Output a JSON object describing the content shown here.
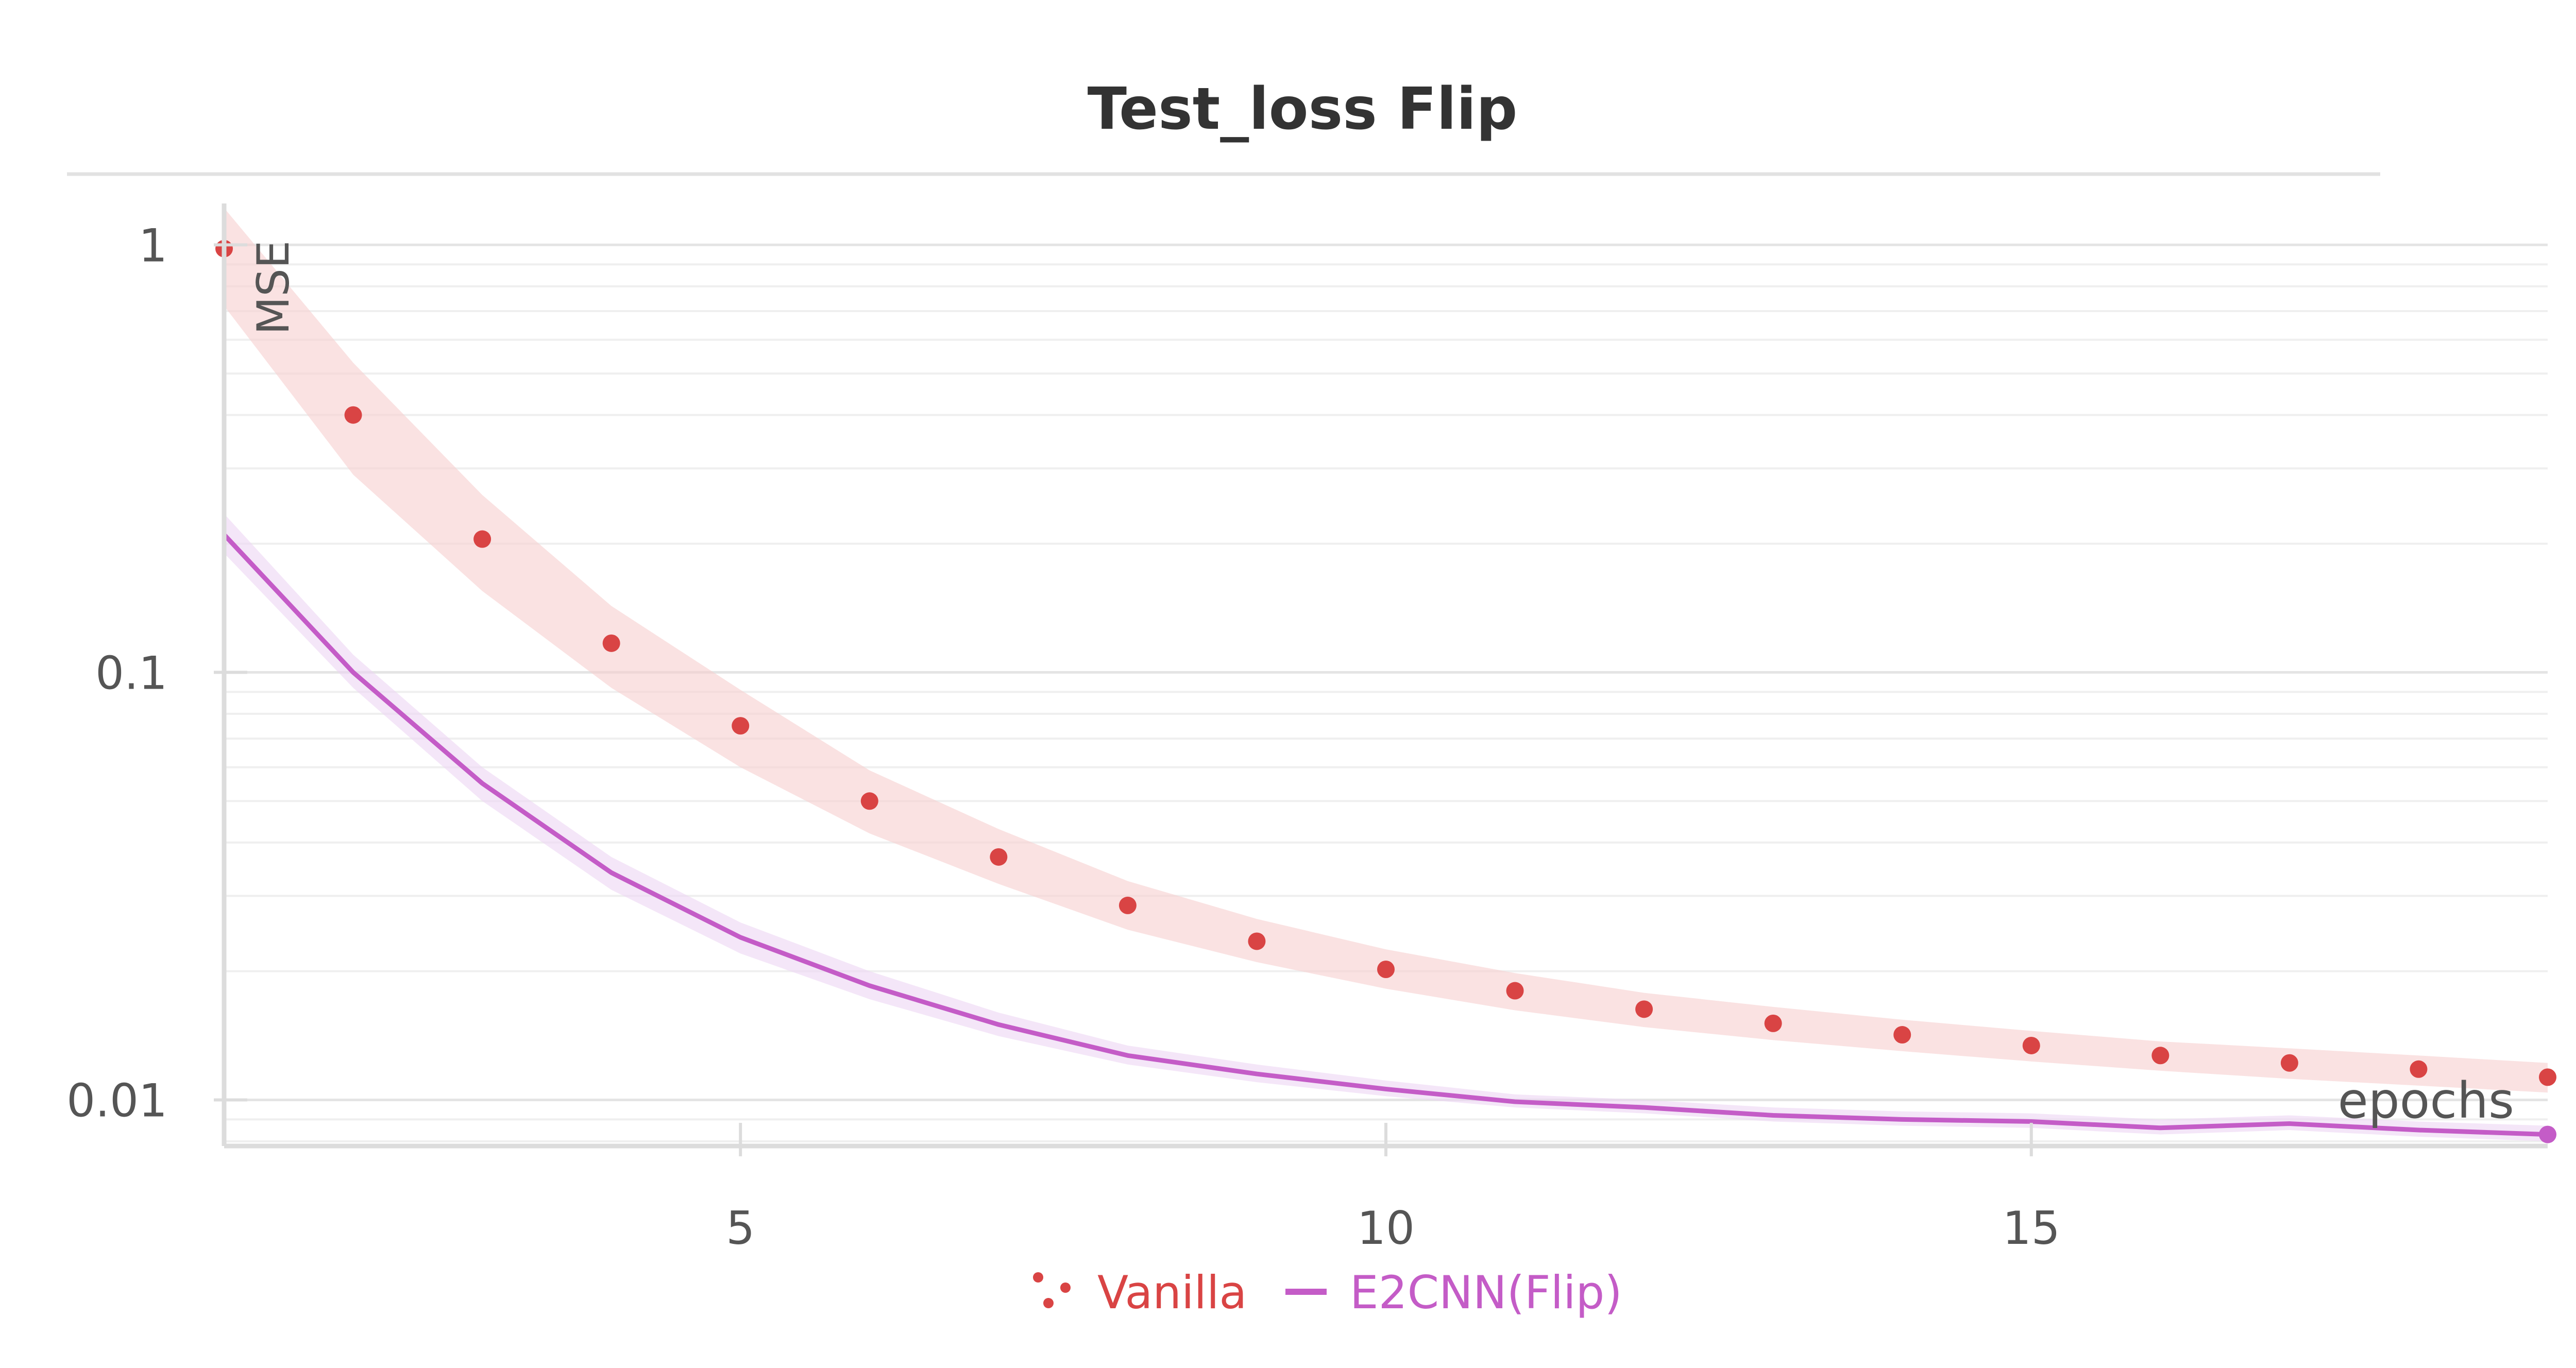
{
  "chart_data": {
    "type": "line",
    "title": "Test_loss Flip",
    "xlabel": "epochs",
    "ylabel": "MSE",
    "yscale": "log",
    "xlim": [
      1,
      19
    ],
    "ylim": [
      0.0078,
      1.25
    ],
    "x_ticks": [
      5,
      10,
      15
    ],
    "y_ticks": [
      {
        "value": 1,
        "label": "1"
      },
      {
        "value": 0.1,
        "label": "0.1"
      },
      {
        "value": 0.01,
        "label": "0.01"
      }
    ],
    "grid": true,
    "legend_position": "bottom",
    "series": [
      {
        "name": "Vanilla",
        "style": "dots",
        "color": "#d94444",
        "band_color": "#f6cfcf",
        "x": [
          1,
          2,
          3,
          4,
          5,
          6,
          7,
          8,
          9,
          10,
          11,
          12,
          13,
          14,
          15,
          16,
          17,
          18,
          19
        ],
        "values": [
          0.98,
          0.4,
          0.205,
          0.117,
          0.075,
          0.05,
          0.037,
          0.0285,
          0.0235,
          0.0202,
          0.018,
          0.0163,
          0.0151,
          0.0142,
          0.0134,
          0.0127,
          0.0122,
          0.0118,
          0.0113
        ],
        "band_low": [
          0.72,
          0.29,
          0.155,
          0.092,
          0.06,
          0.042,
          0.032,
          0.025,
          0.021,
          0.0182,
          0.0162,
          0.0148,
          0.0138,
          0.013,
          0.0123,
          0.0117,
          0.0112,
          0.0108,
          0.0104
        ],
        "band_high": [
          1.22,
          0.53,
          0.26,
          0.143,
          0.091,
          0.059,
          0.043,
          0.0325,
          0.0265,
          0.0225,
          0.0198,
          0.0178,
          0.0165,
          0.0154,
          0.0145,
          0.0137,
          0.0132,
          0.0127,
          0.0122
        ]
      },
      {
        "name": "E2CNN(Flip)",
        "style": "line",
        "color": "#c45cc7",
        "band_color": "#ecd6f3",
        "x": [
          1,
          2,
          3,
          4,
          5,
          6,
          7,
          8,
          9,
          10,
          11,
          12,
          13,
          14,
          15,
          16,
          17,
          18,
          19
        ],
        "values": [
          0.21,
          0.1,
          0.055,
          0.034,
          0.024,
          0.0185,
          0.015,
          0.0127,
          0.0115,
          0.0106,
          0.0099,
          0.0096,
          0.0092,
          0.009,
          0.0089,
          0.0086,
          0.0088,
          0.0085,
          0.0083
        ],
        "band_low": [
          0.19,
          0.092,
          0.05,
          0.031,
          0.022,
          0.0172,
          0.0141,
          0.0121,
          0.011,
          0.0102,
          0.0096,
          0.0093,
          0.0089,
          0.0087,
          0.0086,
          0.0083,
          0.0085,
          0.0082,
          0.008
        ],
        "band_high": [
          0.235,
          0.11,
          0.06,
          0.037,
          0.026,
          0.02,
          0.016,
          0.0134,
          0.0121,
          0.0111,
          0.0103,
          0.01,
          0.0096,
          0.0094,
          0.0093,
          0.009,
          0.0092,
          0.0089,
          0.0087
        ]
      }
    ]
  }
}
